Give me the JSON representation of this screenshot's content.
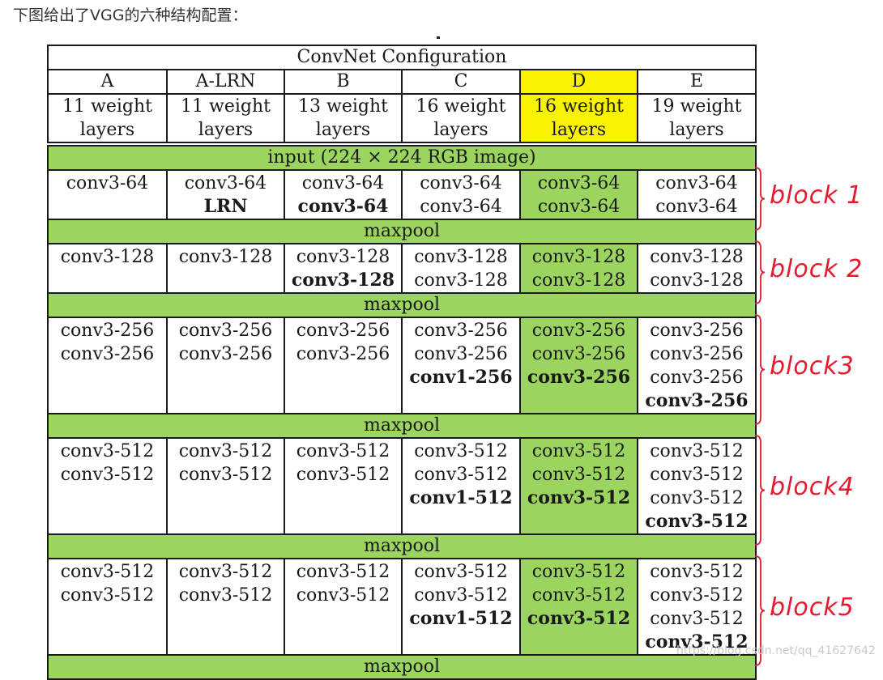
{
  "caption": "下图给出了VGG的六种结构配置：",
  "table": {
    "title": "ConvNet Configuration",
    "columns": [
      "A",
      "A-LRN",
      "B",
      "C",
      "D",
      "E"
    ],
    "weight_line1": [
      "11 weight",
      "11 weight",
      "13 weight",
      "16 weight",
      "16 weight",
      "19 weight"
    ],
    "weight_line2": [
      "layers",
      "layers",
      "layers",
      "layers",
      "layers",
      "layers"
    ],
    "input": "input (224 × 224 RGB image)",
    "maxpool": "maxpool",
    "highlight_color": "#f9f300",
    "row_color": "#9bd45f",
    "blocks": [
      {
        "label": "block 1",
        "cells": [
          [
            {
              "t": "conv3-64",
              "b": false
            }
          ],
          [
            {
              "t": "conv3-64",
              "b": false
            },
            {
              "t": "LRN",
              "b": true
            }
          ],
          [
            {
              "t": "conv3-64",
              "b": false
            },
            {
              "t": "conv3-64",
              "b": true
            }
          ],
          [
            {
              "t": "conv3-64",
              "b": false
            },
            {
              "t": "conv3-64",
              "b": false
            }
          ],
          [
            {
              "t": "conv3-64",
              "b": false
            },
            {
              "t": "conv3-64",
              "b": false
            }
          ],
          [
            {
              "t": "conv3-64",
              "b": false
            },
            {
              "t": "conv3-64",
              "b": false
            }
          ]
        ]
      },
      {
        "label": "block 2",
        "cells": [
          [
            {
              "t": "conv3-128",
              "b": false
            }
          ],
          [
            {
              "t": "conv3-128",
              "b": false
            }
          ],
          [
            {
              "t": "conv3-128",
              "b": false
            },
            {
              "t": "conv3-128",
              "b": true
            }
          ],
          [
            {
              "t": "conv3-128",
              "b": false
            },
            {
              "t": "conv3-128",
              "b": false
            }
          ],
          [
            {
              "t": "conv3-128",
              "b": false
            },
            {
              "t": "conv3-128",
              "b": false
            }
          ],
          [
            {
              "t": "conv3-128",
              "b": false
            },
            {
              "t": "conv3-128",
              "b": false
            }
          ]
        ]
      },
      {
        "label": "block3",
        "cells": [
          [
            {
              "t": "conv3-256",
              "b": false
            },
            {
              "t": "conv3-256",
              "b": false
            }
          ],
          [
            {
              "t": "conv3-256",
              "b": false
            },
            {
              "t": "conv3-256",
              "b": false
            }
          ],
          [
            {
              "t": "conv3-256",
              "b": false
            },
            {
              "t": "conv3-256",
              "b": false
            }
          ],
          [
            {
              "t": "conv3-256",
              "b": false
            },
            {
              "t": "conv3-256",
              "b": false
            },
            {
              "t": "conv1-256",
              "b": true
            }
          ],
          [
            {
              "t": "conv3-256",
              "b": false
            },
            {
              "t": "conv3-256",
              "b": false
            },
            {
              "t": "conv3-256",
              "b": true
            }
          ],
          [
            {
              "t": "conv3-256",
              "b": false
            },
            {
              "t": "conv3-256",
              "b": false
            },
            {
              "t": "conv3-256",
              "b": false
            },
            {
              "t": "conv3-256",
              "b": true
            }
          ]
        ]
      },
      {
        "label": "block4",
        "cells": [
          [
            {
              "t": "conv3-512",
              "b": false
            },
            {
              "t": "conv3-512",
              "b": false
            }
          ],
          [
            {
              "t": "conv3-512",
              "b": false
            },
            {
              "t": "conv3-512",
              "b": false
            }
          ],
          [
            {
              "t": "conv3-512",
              "b": false
            },
            {
              "t": "conv3-512",
              "b": false
            }
          ],
          [
            {
              "t": "conv3-512",
              "b": false
            },
            {
              "t": "conv3-512",
              "b": false
            },
            {
              "t": "conv1-512",
              "b": true
            }
          ],
          [
            {
              "t": "conv3-512",
              "b": false
            },
            {
              "t": "conv3-512",
              "b": false
            },
            {
              "t": "conv3-512",
              "b": true
            }
          ],
          [
            {
              "t": "conv3-512",
              "b": false
            },
            {
              "t": "conv3-512",
              "b": false
            },
            {
              "t": "conv3-512",
              "b": false
            },
            {
              "t": "conv3-512",
              "b": true
            }
          ]
        ]
      },
      {
        "label": "block5",
        "cells": [
          [
            {
              "t": "conv3-512",
              "b": false
            },
            {
              "t": "conv3-512",
              "b": false
            }
          ],
          [
            {
              "t": "conv3-512",
              "b": false
            },
            {
              "t": "conv3-512",
              "b": false
            }
          ],
          [
            {
              "t": "conv3-512",
              "b": false
            },
            {
              "t": "conv3-512",
              "b": false
            }
          ],
          [
            {
              "t": "conv3-512",
              "b": false
            },
            {
              "t": "conv3-512",
              "b": false
            },
            {
              "t": "conv1-512",
              "b": true
            }
          ],
          [
            {
              "t": "conv3-512",
              "b": false
            },
            {
              "t": "conv3-512",
              "b": false
            },
            {
              "t": "conv3-512",
              "b": true
            }
          ],
          [
            {
              "t": "conv3-512",
              "b": false
            },
            {
              "t": "conv3-512",
              "b": false
            },
            {
              "t": "conv3-512",
              "b": false
            },
            {
              "t": "conv3-512",
              "b": true
            }
          ]
        ]
      }
    ]
  },
  "annotation_color": "#e8192c",
  "watermark": "https://blog.csdn.net/qq_41627642"
}
